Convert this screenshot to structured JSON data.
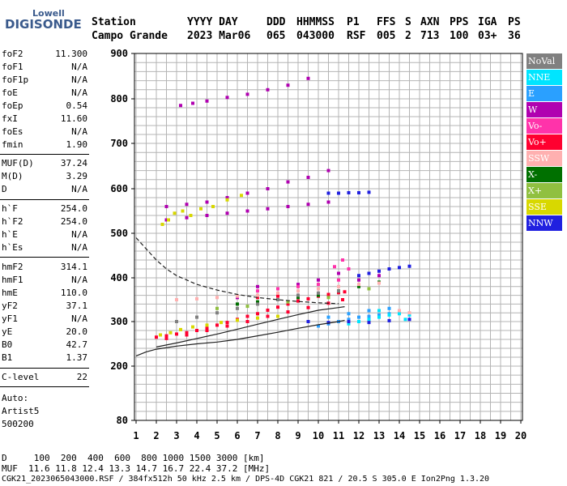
{
  "logo": {
    "top": "Lowell",
    "bottom": "DIGISONDE"
  },
  "header": {
    "labels": [
      "Station",
      "YYYY DAY",
      "DDD",
      "HHMMSS",
      "P1",
      "FFS",
      "S",
      "AXN",
      "PPS",
      "IGA",
      "PS"
    ],
    "values": [
      "Campo Grande",
      "2023 Mar06",
      "065",
      "043000",
      "RSF",
      "005",
      "2",
      "713",
      "100",
      "03+",
      "36"
    ]
  },
  "params_group1": [
    {
      "name": "foF2",
      "value": "11.300"
    },
    {
      "name": "foF1",
      "value": "N/A"
    },
    {
      "name": "foF1p",
      "value": "N/A"
    },
    {
      "name": "foE",
      "value": "N/A"
    },
    {
      "name": "foEp",
      "value": "0.54"
    },
    {
      "name": "fxI",
      "value": "11.60"
    },
    {
      "name": "foEs",
      "value": "N/A"
    },
    {
      "name": "fmin",
      "value": "1.90"
    }
  ],
  "params_group2": [
    {
      "name": "MUF(D)",
      "value": "37.24"
    },
    {
      "name": "M(D)",
      "value": "3.29"
    },
    {
      "name": "D",
      "value": "N/A"
    }
  ],
  "params_group3": [
    {
      "name": "h`F",
      "value": "254.0"
    },
    {
      "name": "h`F2",
      "value": "254.0"
    },
    {
      "name": "h`E",
      "value": "N/A"
    },
    {
      "name": "h`Es",
      "value": "N/A"
    }
  ],
  "params_group4": [
    {
      "name": "hmF2",
      "value": "314.1"
    },
    {
      "name": "hmF1",
      "value": "N/A"
    },
    {
      "name": "hmE",
      "value": "110.0"
    },
    {
      "name": "yF2",
      "value": "37.1"
    },
    {
      "name": "yF1",
      "value": "N/A"
    },
    {
      "name": "yE",
      "value": "20.0"
    },
    {
      "name": "B0",
      "value": "42.7"
    },
    {
      "name": "B1",
      "value": "1.37"
    }
  ],
  "c_level": {
    "name": "C-level",
    "value": "22"
  },
  "auto": {
    "line1": "Auto:",
    "line2": "Artist5",
    "line3": "500200"
  },
  "legend": [
    {
      "label": "NoVal",
      "color": "#808080"
    },
    {
      "label": "NNE",
      "color": "#00e5ff"
    },
    {
      "label": "E",
      "color": "#2aa0ff"
    },
    {
      "label": "W",
      "color": "#b000b0"
    },
    {
      "label": "Vo-",
      "color": "#ff33aa"
    },
    {
      "label": "Vo+",
      "color": "#ff0030"
    },
    {
      "label": "SSW",
      "color": "#ffb0b0"
    },
    {
      "label": "X-",
      "color": "#007000"
    },
    {
      "label": "X+",
      "color": "#90c040"
    },
    {
      "label": "SSE",
      "color": "#d8d800"
    },
    {
      "label": "NNW",
      "color": "#2020e0"
    }
  ],
  "footer": {
    "line1": "D     100  200  400  600  800 1000 1500 3000 [km]",
    "line2": "MUF  11.6 11.8 12.4 13.3 14.7 16.7 22.4 37.2 [MHz]",
    "line3": "CGK21_2023065043000.RSF / 384fx512h 50 kHz 2.5 km / DPS-4D CGK21 821 / 20.5 S 305.0 E Ion2Png 1.3.20"
  },
  "chart_data": {
    "type": "scatter",
    "xlim": [
      1,
      20
    ],
    "ylim": [
      80,
      900
    ],
    "x_ticks": [
      "1",
      "2",
      "3",
      "4",
      "5",
      "6",
      "7",
      "8",
      "9",
      "10",
      "11",
      "12",
      "13",
      "14",
      "15",
      "16",
      "17",
      "18",
      "19",
      "20"
    ],
    "y_ticks": [
      "80",
      "200",
      "300",
      "400",
      "500",
      "600",
      "700",
      "800",
      "900"
    ],
    "grid": true,
    "legend_position": "right",
    "series": [
      {
        "color": "#ff0030",
        "points": [
          [
            2.0,
            265
          ],
          [
            2.5,
            268
          ],
          [
            3.0,
            272
          ],
          [
            3.5,
            275
          ],
          [
            4.0,
            280
          ],
          [
            4.5,
            285
          ],
          [
            5.0,
            292
          ],
          [
            5.5,
            298
          ],
          [
            6.0,
            305
          ],
          [
            6.5,
            312
          ],
          [
            7.0,
            318
          ],
          [
            7.5,
            326
          ],
          [
            8.0,
            333
          ],
          [
            8.5,
            340
          ],
          [
            9.0,
            347
          ],
          [
            9.5,
            352
          ],
          [
            10.0,
            358
          ],
          [
            10.5,
            362
          ],
          [
            11.0,
            366
          ],
          [
            11.3,
            368
          ],
          [
            2.5,
            262
          ],
          [
            3.5,
            270
          ],
          [
            4.5,
            280
          ],
          [
            5.5,
            290
          ],
          [
            6.5,
            300
          ],
          [
            7.5,
            312
          ],
          [
            8.5,
            322
          ],
          [
            9.5,
            332
          ],
          [
            10.5,
            342
          ],
          [
            11.2,
            350
          ],
          [
            6,
            355
          ],
          [
            7,
            355
          ],
          [
            8,
            358
          ],
          [
            9,
            360
          ],
          [
            10,
            365
          ]
        ]
      },
      {
        "color": "#b000b0",
        "points": [
          [
            3.2,
            785
          ],
          [
            3.8,
            790
          ],
          [
            4.5,
            795
          ],
          [
            5.5,
            803
          ],
          [
            6.5,
            810
          ],
          [
            7.5,
            820
          ],
          [
            8.5,
            830
          ],
          [
            9.5,
            845
          ],
          [
            2.5,
            560
          ],
          [
            3.5,
            565
          ],
          [
            4.5,
            570
          ],
          [
            5.5,
            580
          ],
          [
            6.5,
            590
          ],
          [
            7.5,
            600
          ],
          [
            8.5,
            615
          ],
          [
            9.5,
            625
          ],
          [
            10.5,
            640
          ],
          [
            2.5,
            530
          ],
          [
            3.5,
            535
          ],
          [
            4.5,
            540
          ],
          [
            5.5,
            545
          ],
          [
            6.5,
            550
          ],
          [
            7.5,
            555
          ],
          [
            8.5,
            560
          ],
          [
            9.5,
            565
          ],
          [
            10.5,
            570
          ],
          [
            6,
            355
          ],
          [
            7,
            380
          ],
          [
            8,
            375
          ],
          [
            9,
            385
          ],
          [
            10,
            395
          ],
          [
            11,
            410
          ],
          [
            12,
            395
          ],
          [
            13,
            405
          ]
        ]
      },
      {
        "color": "#d8d800",
        "points": [
          [
            2.3,
            520
          ],
          [
            2.6,
            530
          ],
          [
            2.9,
            545
          ],
          [
            3.3,
            550
          ],
          [
            3.7,
            540
          ],
          [
            4.2,
            555
          ],
          [
            4.8,
            560
          ],
          [
            5.5,
            575
          ],
          [
            6.2,
            585
          ],
          [
            2.2,
            270
          ],
          [
            2.7,
            275
          ],
          [
            3.2,
            282
          ],
          [
            3.8,
            288
          ],
          [
            4.5,
            292
          ],
          [
            5.2,
            298
          ],
          [
            6.0,
            303
          ],
          [
            7.0,
            308
          ],
          [
            8.0,
            312
          ]
        ]
      },
      {
        "color": "#2aa0ff",
        "points": [
          [
            10.0,
            290
          ],
          [
            10.5,
            295
          ],
          [
            11.0,
            300
          ],
          [
            11.5,
            305
          ],
          [
            12.0,
            310
          ],
          [
            12.5,
            312
          ],
          [
            13.0,
            315
          ],
          [
            13.5,
            318
          ],
          [
            14.0,
            320
          ],
          [
            14.5,
            316
          ],
          [
            10.5,
            310
          ],
          [
            11.5,
            318
          ],
          [
            12.5,
            325
          ],
          [
            13.5,
            330
          ]
        ]
      },
      {
        "color": "#00e5ff",
        "points": [
          [
            12.0,
            300
          ],
          [
            12.5,
            305
          ],
          [
            13.0,
            310
          ],
          [
            13.5,
            315
          ],
          [
            14.0,
            318
          ],
          [
            14.5,
            315
          ],
          [
            11.5,
            295
          ],
          [
            13.0,
            325
          ],
          [
            14.3,
            305
          ]
        ]
      },
      {
        "color": "#2020e0",
        "points": [
          [
            10.5,
            590
          ],
          [
            11.0,
            590
          ],
          [
            11.5,
            591
          ],
          [
            12.0,
            591
          ],
          [
            12.5,
            592
          ],
          [
            12.0,
            405
          ],
          [
            12.5,
            410
          ],
          [
            13.0,
            415
          ],
          [
            13.5,
            420
          ],
          [
            14.0,
            423
          ],
          [
            14.5,
            426
          ],
          [
            9.5,
            300
          ],
          [
            10.5,
            298
          ],
          [
            11.5,
            300
          ],
          [
            12.5,
            298
          ],
          [
            13.5,
            302
          ],
          [
            14.5,
            305
          ]
        ]
      },
      {
        "color": "#007000",
        "points": [
          [
            6.0,
            340
          ],
          [
            7.0,
            345
          ],
          [
            8.0,
            350
          ],
          [
            9.0,
            355
          ],
          [
            10.0,
            360
          ],
          [
            11.0,
            370
          ],
          [
            12.0,
            380
          ],
          [
            13.0,
            390
          ]
        ]
      },
      {
        "color": "#90c040",
        "points": [
          [
            5.0,
            330
          ],
          [
            6.5,
            335
          ],
          [
            8.5,
            345
          ],
          [
            10.5,
            355
          ],
          [
            12.5,
            375
          ]
        ]
      },
      {
        "color": "#ffb0b0",
        "points": [
          [
            3.0,
            350
          ],
          [
            4.0,
            352
          ],
          [
            5.0,
            355
          ],
          [
            6.0,
            358
          ],
          [
            7.0,
            360
          ],
          [
            8.0,
            365
          ],
          [
            9.0,
            370
          ],
          [
            10.0,
            375
          ],
          [
            11.0,
            380
          ],
          [
            12.0,
            385
          ],
          [
            13.0,
            388
          ],
          [
            14.0,
            325
          ],
          [
            14.5,
            320
          ]
        ]
      },
      {
        "color": "#ff33aa",
        "points": [
          [
            7.0,
            370
          ],
          [
            8.0,
            375
          ],
          [
            9.0,
            380
          ],
          [
            10.0,
            385
          ],
          [
            11.0,
            395
          ],
          [
            11.5,
            420
          ],
          [
            11.2,
            440
          ],
          [
            10.8,
            425
          ]
        ]
      },
      {
        "color": "#808080",
        "points": [
          [
            3.0,
            300
          ],
          [
            4.0,
            310
          ],
          [
            5.0,
            320
          ],
          [
            6.0,
            330
          ],
          [
            7.0,
            340
          ],
          [
            8.0,
            350
          ],
          [
            9.0,
            360
          ],
          [
            10.0,
            365
          ],
          [
            11.0,
            370
          ]
        ]
      }
    ],
    "curves": [
      {
        "style": "dashed",
        "points": [
          [
            1,
            490
          ],
          [
            1.5,
            465
          ],
          [
            2,
            440
          ],
          [
            2.5,
            420
          ],
          [
            3,
            405
          ],
          [
            4,
            385
          ],
          [
            5,
            372
          ],
          [
            6,
            362
          ],
          [
            7,
            355
          ],
          [
            8,
            350
          ],
          [
            9,
            346
          ],
          [
            10,
            343
          ],
          [
            11,
            341
          ]
        ]
      },
      {
        "style": "solid",
        "points": [
          [
            1,
            223
          ],
          [
            1.5,
            232
          ],
          [
            2,
            238
          ],
          [
            3,
            245
          ],
          [
            4,
            250
          ],
          [
            5,
            254
          ],
          [
            6,
            260
          ],
          [
            7,
            268
          ],
          [
            8,
            276
          ],
          [
            9,
            285
          ],
          [
            10,
            293
          ],
          [
            11,
            300
          ],
          [
            11.3,
            303
          ]
        ]
      },
      {
        "style": "solid",
        "points": [
          [
            2,
            243
          ],
          [
            3,
            252
          ],
          [
            4,
            262
          ],
          [
            5,
            272
          ],
          [
            6,
            283
          ],
          [
            7,
            294
          ],
          [
            8,
            305
          ],
          [
            9,
            316
          ],
          [
            10,
            326
          ],
          [
            11,
            332
          ],
          [
            11.3,
            334
          ]
        ]
      }
    ]
  }
}
